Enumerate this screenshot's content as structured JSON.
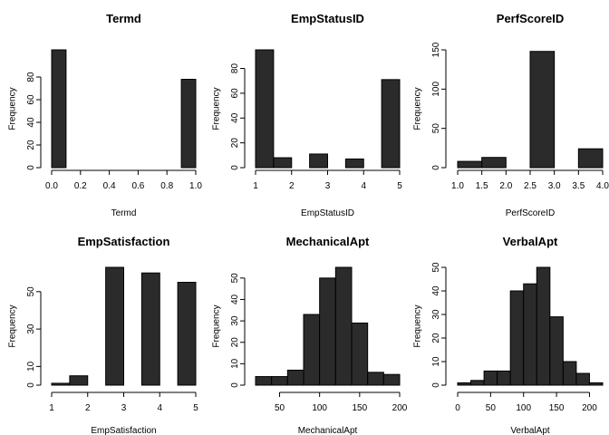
{
  "chart_data": [
    {
      "type": "bar",
      "title": "Termd",
      "xlabel": "Termd",
      "ylabel": "Frequency",
      "bins": [
        [
          0.0,
          0.1
        ],
        [
          0.1,
          0.2
        ],
        [
          0.2,
          0.3
        ],
        [
          0.3,
          0.4
        ],
        [
          0.4,
          0.5
        ],
        [
          0.5,
          0.6
        ],
        [
          0.6,
          0.7
        ],
        [
          0.7,
          0.8
        ],
        [
          0.8,
          0.9
        ],
        [
          0.9,
          1.0
        ]
      ],
      "values": [
        104,
        0,
        0,
        0,
        0,
        0,
        0,
        0,
        0,
        78
      ],
      "xticks": [
        "0.0",
        "0.2",
        "0.4",
        "0.6",
        "0.8",
        "1.0"
      ],
      "xtick_values": [
        0.0,
        0.2,
        0.4,
        0.6,
        0.8,
        1.0
      ],
      "yticks": [
        0,
        20,
        40,
        60,
        80
      ],
      "xlim": [
        0.0,
        1.0
      ],
      "ylim": [
        0,
        104
      ]
    },
    {
      "type": "bar",
      "title": "EmpStatusID",
      "xlabel": "EmpStatusID",
      "ylabel": "Frequency",
      "bins": [
        [
          1.0,
          1.5
        ],
        [
          1.5,
          2.0
        ],
        [
          2.0,
          2.5
        ],
        [
          2.5,
          3.0
        ],
        [
          3.0,
          3.5
        ],
        [
          3.5,
          4.0
        ],
        [
          4.0,
          4.5
        ],
        [
          4.5,
          5.0
        ]
      ],
      "values": [
        95,
        8,
        0,
        11,
        0,
        7,
        0,
        71
      ],
      "xticks": [
        "1",
        "2",
        "3",
        "4",
        "5"
      ],
      "xtick_values": [
        1,
        2,
        3,
        4,
        5
      ],
      "yticks": [
        0,
        20,
        40,
        60,
        80
      ],
      "xlim": [
        1,
        5
      ],
      "ylim": [
        0,
        95
      ]
    },
    {
      "type": "bar",
      "title": "PerfScoreID",
      "xlabel": "PerfScoreID",
      "ylabel": "Frequency",
      "bins": [
        [
          1.0,
          1.5
        ],
        [
          1.5,
          2.0
        ],
        [
          2.0,
          2.5
        ],
        [
          2.5,
          3.0
        ],
        [
          3.0,
          3.5
        ],
        [
          3.5,
          4.0
        ]
      ],
      "values": [
        8,
        13,
        0,
        148,
        0,
        24
      ],
      "xticks": [
        "1.0",
        "1.5",
        "2.0",
        "2.5",
        "3.0",
        "3.5",
        "4.0"
      ],
      "xtick_values": [
        1.0,
        1.5,
        2.0,
        2.5,
        3.0,
        3.5,
        4.0
      ],
      "yticks": [
        0,
        50,
        100,
        150
      ],
      "xlim": [
        1.0,
        4.0
      ],
      "ylim": [
        0,
        150
      ]
    },
    {
      "type": "bar",
      "title": "EmpSatisfaction",
      "xlabel": "EmpSatisfaction",
      "ylabel": "Frequency",
      "bins": [
        [
          1.0,
          1.5
        ],
        [
          1.5,
          2.0
        ],
        [
          2.0,
          2.5
        ],
        [
          2.5,
          3.0
        ],
        [
          3.0,
          3.5
        ],
        [
          3.5,
          4.0
        ],
        [
          4.0,
          4.5
        ],
        [
          4.5,
          5.0
        ]
      ],
      "values": [
        1,
        5,
        0,
        63,
        0,
        60,
        0,
        55
      ],
      "xticks": [
        "1",
        "2",
        "3",
        "4",
        "5"
      ],
      "xtick_values": [
        1,
        2,
        3,
        4,
        5
      ],
      "yticks": [
        0,
        10,
        30,
        50
      ],
      "xlim": [
        1,
        5
      ],
      "ylim": [
        0,
        63
      ]
    },
    {
      "type": "bar",
      "title": "MechanicalApt",
      "xlabel": "MechanicalApt",
      "ylabel": "Frequency",
      "bins": [
        [
          20,
          40
        ],
        [
          40,
          60
        ],
        [
          60,
          80
        ],
        [
          80,
          100
        ],
        [
          100,
          120
        ],
        [
          120,
          140
        ],
        [
          140,
          160
        ],
        [
          160,
          180
        ],
        [
          180,
          200
        ]
      ],
      "values": [
        4,
        4,
        7,
        33,
        50,
        55,
        29,
        6,
        5
      ],
      "xticks": [
        "50",
        "100",
        "150",
        "200"
      ],
      "xtick_values": [
        50,
        100,
        150,
        200
      ],
      "yticks": [
        0,
        10,
        20,
        30,
        40,
        50
      ],
      "xlim": [
        20,
        200
      ],
      "ylim": [
        0,
        55
      ]
    },
    {
      "type": "bar",
      "title": "VerbalApt",
      "xlabel": "VerbalApt",
      "ylabel": "Frequency",
      "bins": [
        [
          0,
          20
        ],
        [
          20,
          40
        ],
        [
          40,
          60
        ],
        [
          60,
          80
        ],
        [
          80,
          100
        ],
        [
          100,
          120
        ],
        [
          120,
          140
        ],
        [
          140,
          160
        ],
        [
          160,
          180
        ],
        [
          180,
          200
        ],
        [
          200,
          220
        ]
      ],
      "values": [
        1,
        2,
        6,
        6,
        40,
        43,
        50,
        29,
        10,
        5,
        1
      ],
      "xticks": [
        "0",
        "50",
        "100",
        "150",
        "200"
      ],
      "xtick_values": [
        0,
        50,
        100,
        150,
        200
      ],
      "yticks": [
        0,
        10,
        20,
        30,
        40,
        50
      ],
      "xlim": [
        0,
        220
      ],
      "ylim": [
        0,
        50
      ]
    }
  ]
}
